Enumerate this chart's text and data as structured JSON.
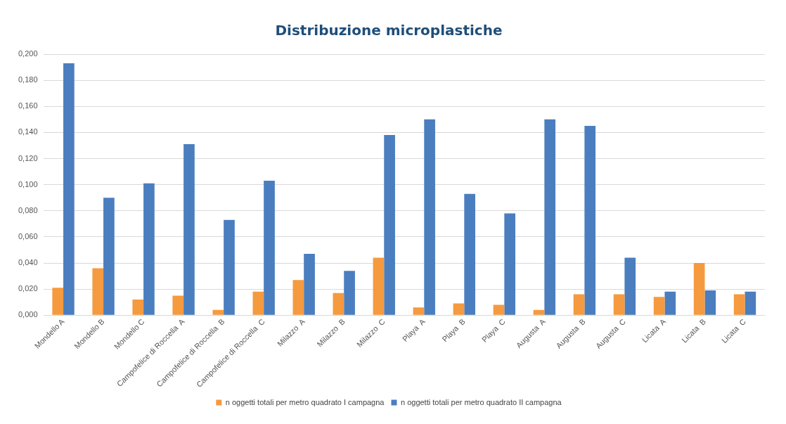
{
  "chart_data": {
    "type": "bar",
    "title": "Distribuzione microplastiche",
    "categories": [
      "Mondello A",
      "Mondello B",
      "Mondello C",
      "Campofelice di Roccella  A",
      "Campofelice di Roccella  B",
      "Campofelice di Roccella  C",
      "Milazzo  A",
      "Milazzo  B",
      "Milazzo  C",
      "Playa  A",
      "Playa  B",
      "Playa  C",
      "Augusta  A",
      "Augusta  B",
      "Augusta  C",
      "Licata  A",
      "Licata  B",
      "Licata  C"
    ],
    "series": [
      {
        "name": "n oggetti totali per metro quadrato I campagna",
        "color": "#f59a3f",
        "values": [
          0.021,
          0.036,
          0.012,
          0.015,
          0.004,
          0.018,
          0.027,
          0.017,
          0.044,
          0.006,
          0.009,
          0.008,
          0.004,
          0.016,
          0.016,
          0.014,
          0.04,
          0.016
        ]
      },
      {
        "name": "n oggetti totali per metro quadrato II campagna",
        "color": "#4a7ebf",
        "values": [
          0.193,
          0.09,
          0.101,
          0.131,
          0.073,
          0.103,
          0.047,
          0.034,
          0.138,
          0.15,
          0.093,
          0.078,
          0.15,
          0.145,
          0.044,
          0.018,
          0.019,
          0.018
        ]
      }
    ],
    "ylim": [
      0,
      0.2
    ],
    "yticks": [
      {
        "value": 0,
        "label": "0,000"
      },
      {
        "value": 0.02,
        "label": "0,020"
      },
      {
        "value": 0.04,
        "label": "0,040"
      },
      {
        "value": 0.06,
        "label": "0,060"
      },
      {
        "value": 0.08,
        "label": "0,080"
      },
      {
        "value": 0.1,
        "label": "0,100"
      },
      {
        "value": 0.12,
        "label": "0,120"
      },
      {
        "value": 0.14,
        "label": "0,140"
      },
      {
        "value": 0.16,
        "label": "0,160"
      },
      {
        "value": 0.18,
        "label": "0,180"
      },
      {
        "value": 0.2,
        "label": "0,200"
      }
    ],
    "grid": "y",
    "legend": "bottom"
  }
}
